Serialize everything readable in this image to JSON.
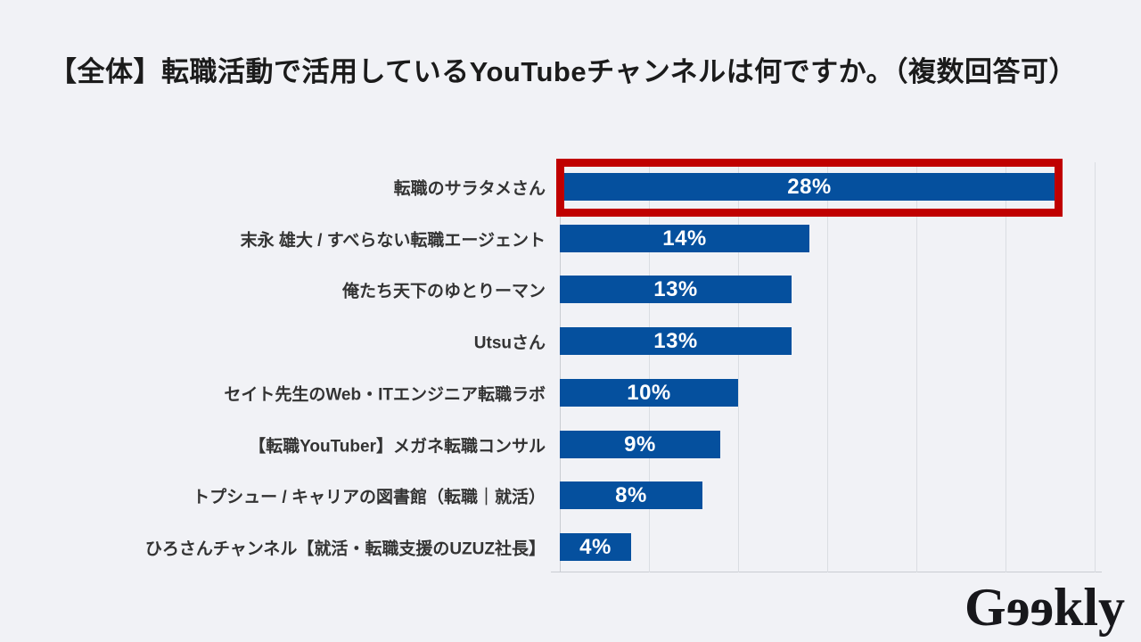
{
  "chart_data": {
    "type": "bar",
    "orientation": "horizontal",
    "title": "【全体】転職活動で活用しているYouTubeチャンネルは何ですか。（複数回答可）",
    "categories": [
      "転職のサラタメさん",
      "末永 雄大 / すべらない転職エージェント",
      "俺たち天下のゆとりーマン",
      "Utsuさん",
      "セイト先生のWeb・ITエンジニア転職ラボ",
      "【転職YouTuber】メガネ転職コンサル",
      "トプシュー / キャリアの図書館（転職｜就活）",
      "ひろさんチャンネル【就活・転職支援のUZUZ社長】"
    ],
    "values": [
      28,
      14,
      13,
      13,
      10,
      9,
      8,
      4
    ],
    "value_labels": [
      "28%",
      "14%",
      "13%",
      "13%",
      "10%",
      "9%",
      "8%",
      "4%"
    ],
    "xlabel": "",
    "ylabel": "",
    "xlim": [
      0,
      30
    ],
    "gridline_step": 5,
    "grid": true,
    "legend": "none",
    "axis_tick_labels_visible": false,
    "highlighted_index": 0,
    "colors": {
      "bar": "#05509E",
      "highlight_border": "#C00000",
      "value_label": "#FFFFFF",
      "category_label": "#333333",
      "title": "#1B1B1B",
      "background": "#F1F2F6",
      "gridline": "#DADDE2",
      "axis_line": "#C9CCD2"
    }
  },
  "logo": {
    "alt": "Geekly",
    "prefix": "G",
    "flipped": "ee",
    "suffix": "kly"
  }
}
